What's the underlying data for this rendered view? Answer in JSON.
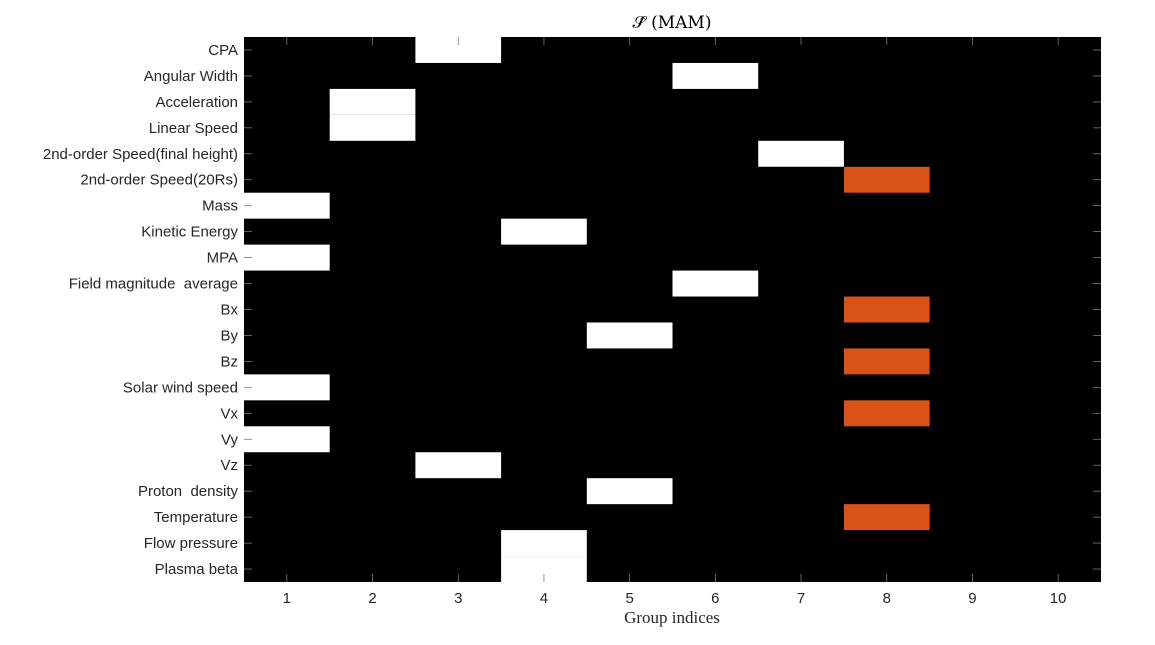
{
  "chart_data": {
    "type": "heatmap",
    "title": "𝒮̂ (MAM)",
    "xlabel": "Group indices",
    "ylabel": "",
    "xlim": [
      0.5,
      10.5
    ],
    "x_ticks": [
      "1",
      "2",
      "3",
      "4",
      "5",
      "6",
      "7",
      "8",
      "9",
      "10"
    ],
    "rows": [
      "CPA",
      "Angular Width",
      "Acceleration",
      "Linear Speed",
      "2nd-order Speed(final height)",
      "2nd-order Speed(20Rs)",
      "Mass",
      "Kinetic Energy",
      "MPA",
      "Field magnitude  average",
      "Bx",
      "By",
      "Bz",
      "Solar wind speed",
      "Vx",
      "Vy",
      "Vz",
      "Proton  density",
      "Temperature",
      "Flow pressure",
      "Plasma beta"
    ],
    "group_assignment": [
      3,
      6,
      2,
      2,
      7,
      8,
      1,
      4,
      1,
      6,
      8,
      5,
      8,
      1,
      8,
      1,
      3,
      5,
      8,
      4,
      4
    ],
    "cell_values": [
      1,
      1,
      1,
      1,
      1,
      2,
      1,
      1,
      1,
      1,
      2,
      1,
      2,
      1,
      2,
      1,
      1,
      1,
      2,
      1,
      1
    ],
    "colors": {
      "background": "#000000",
      "value_1": "#ffffff",
      "value_2": "#d95319"
    },
    "grid": false,
    "legend": "none"
  }
}
